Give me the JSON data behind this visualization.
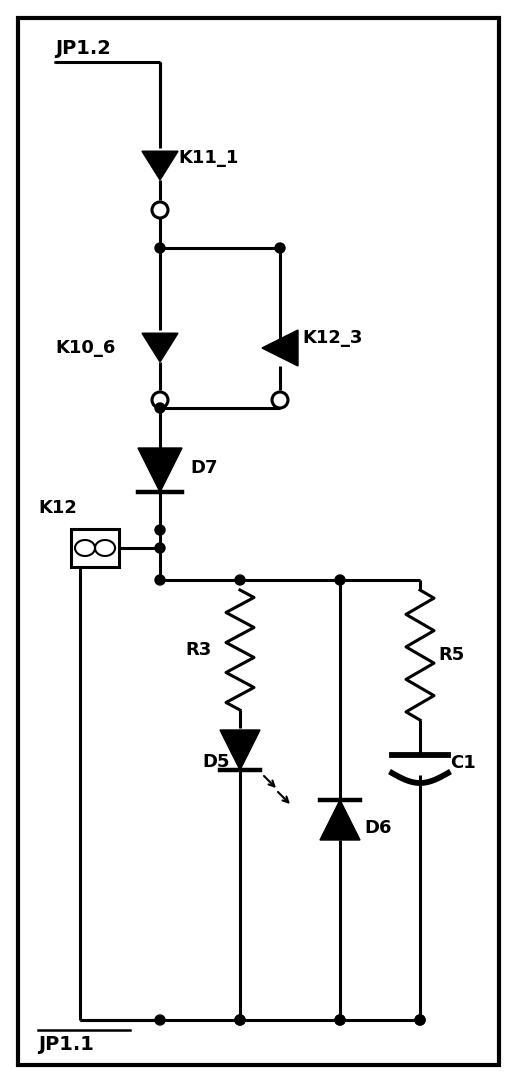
{
  "bg_color": "#ffffff",
  "line_color": "#000000",
  "fig_width": 5.17,
  "fig_height": 10.84,
  "dpi": 100,
  "labels": {
    "JP1_2": "JP1.2",
    "JP1_1": "JP1.1",
    "K11_1": "K11_1",
    "K10_6": "K10_6",
    "K12_3": "K12_3",
    "D7": "D7",
    "K12": "K12",
    "R3": "R3",
    "D5": "D5",
    "D6": "D6",
    "R5": "R5",
    "C1": "C1"
  }
}
